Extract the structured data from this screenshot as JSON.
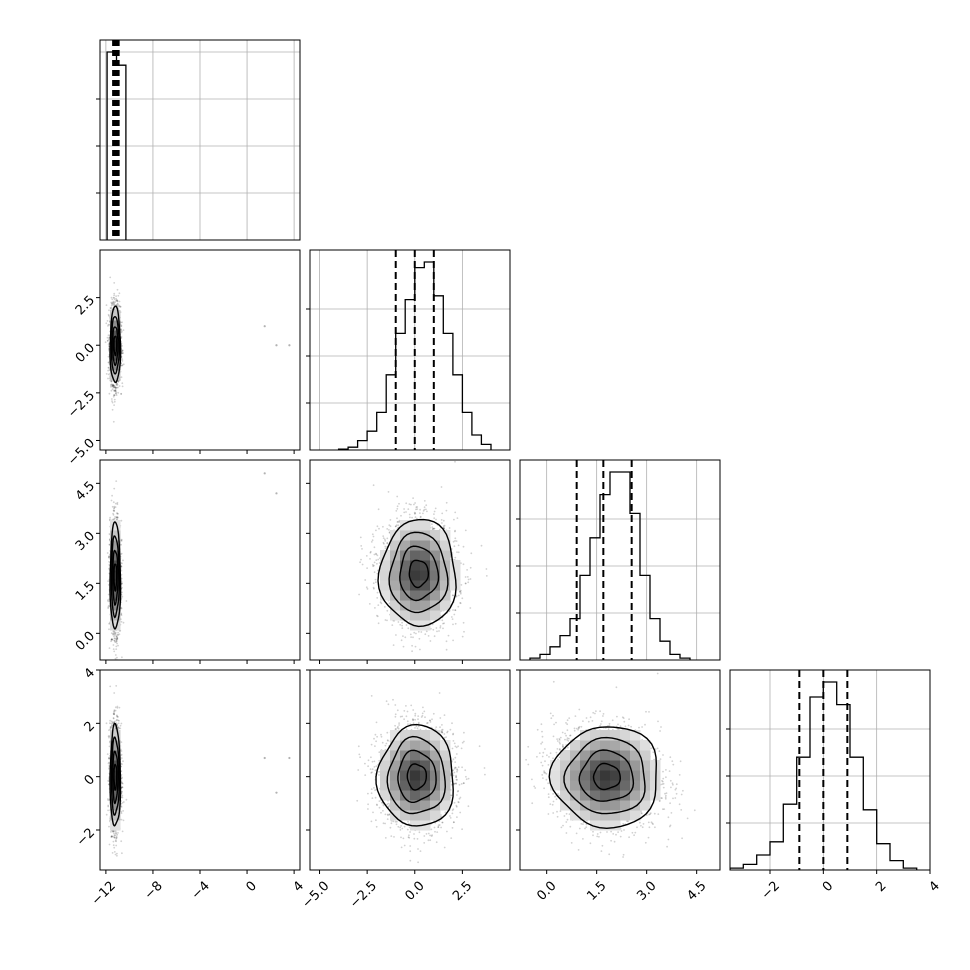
{
  "chart_data": {
    "type": "corner",
    "n_params": 4,
    "axis_ranges": [
      [
        -12.5,
        4.5
      ],
      [
        -5.5,
        5.0
      ],
      [
        -0.8,
        5.2
      ],
      [
        -3.5,
        4.0
      ]
    ],
    "bottom_tick_values": [
      [
        -12,
        -8,
        -4,
        0,
        4
      ],
      [
        -5.0,
        -2.5,
        0.0,
        2.5
      ],
      [
        0.0,
        1.5,
        3.0,
        4.5
      ],
      [
        -2,
        0,
        2,
        4
      ]
    ],
    "bottom_tick_labels": [
      [
        "−12",
        "−8",
        "−4",
        "0",
        "4"
      ],
      [
        "−5.0",
        "−2.5",
        "0.0",
        "2.5"
      ],
      [
        "0.0",
        "1.5",
        "3.0",
        "4.5"
      ],
      [
        "−2",
        "0",
        "2",
        "4"
      ]
    ],
    "left_tick_values": [
      [
        2.5,
        0.0,
        -2.5,
        -5.0
      ],
      [
        4.5,
        3.0,
        1.5,
        0.0
      ],
      [
        4,
        2,
        0,
        -2
      ]
    ],
    "left_tick_labels": [
      [
        "2.5",
        "0.0",
        "−2.5",
        "−5.0"
      ],
      [
        "4.5",
        "3.0",
        "1.5",
        "0.0"
      ],
      [
        "4",
        "2",
        "0",
        "−2"
      ]
    ],
    "grid": true,
    "quantiles": [
      0.16,
      0.5,
      0.84
    ],
    "histograms": [
      {
        "param": 0,
        "bin_edges": [
          -11.9,
          -11.1,
          -10.3
        ],
        "counts": [
          1.0,
          0.93
        ],
        "quantile_values": [
          -11.3,
          -11.15,
          -11.0
        ]
      },
      {
        "param": 1,
        "bin_edges": [
          -4.0,
          -3.5,
          -3.0,
          -2.5,
          -2.0,
          -1.5,
          -1.0,
          -0.5,
          0.0,
          0.5,
          1.0,
          1.5,
          2.0,
          2.5,
          3.0,
          3.5,
          4.0
        ],
        "counts": [
          0.005,
          0.015,
          0.05,
          0.1,
          0.2,
          0.4,
          0.62,
          0.8,
          0.97,
          1.0,
          0.82,
          0.62,
          0.4,
          0.2,
          0.08,
          0.03
        ],
        "quantile_values": [
          -1.0,
          0.0,
          1.0
        ]
      },
      {
        "param": 2,
        "bin_edges": [
          -0.5,
          -0.2,
          0.1,
          0.4,
          0.7,
          1.0,
          1.3,
          1.6,
          1.9,
          2.2,
          2.5,
          2.8,
          3.1,
          3.4,
          3.7,
          4.0,
          4.3
        ],
        "counts": [
          0.01,
          0.03,
          0.07,
          0.13,
          0.22,
          0.45,
          0.65,
          0.88,
          1.0,
          1.0,
          0.78,
          0.45,
          0.22,
          0.1,
          0.03,
          0.01
        ],
        "quantile_values": [
          0.9,
          1.7,
          2.55
        ]
      },
      {
        "param": 3,
        "bin_edges": [
          -3.5,
          -3.0,
          -2.5,
          -2.0,
          -1.5,
          -1.0,
          -0.5,
          0.0,
          0.5,
          1.0,
          1.5,
          2.0,
          2.5,
          3.0,
          3.5
        ],
        "counts": [
          0.01,
          0.03,
          0.08,
          0.15,
          0.35,
          0.6,
          0.92,
          1.0,
          0.88,
          0.6,
          0.32,
          0.14,
          0.05,
          0.01
        ],
        "quantile_values": [
          -0.9,
          0.0,
          0.9
        ]
      }
    ],
    "pairs": [
      {
        "x_param": 0,
        "y_param": 1,
        "center": [
          -11.2,
          0.0
        ],
        "sigma": [
          0.22,
          1.0
        ],
        "corr": 0.0,
        "outliers": [
          [
            1.5,
            1.0
          ],
          [
            2.5,
            0.0
          ],
          [
            3.6,
            0.0
          ]
        ]
      },
      {
        "x_param": 0,
        "y_param": 2,
        "center": [
          -11.2,
          1.7
        ],
        "sigma": [
          0.22,
          0.8
        ],
        "corr": 0.0,
        "outliers": [
          [
            1.5,
            4.8
          ],
          [
            2.5,
            4.2
          ]
        ]
      },
      {
        "x_param": 1,
        "y_param": 2,
        "center": [
          0.2,
          1.8
        ],
        "sigma": [
          1.0,
          0.8
        ],
        "corr": -0.05,
        "outliers": []
      },
      {
        "x_param": 0,
        "y_param": 3,
        "center": [
          -11.2,
          0.0
        ],
        "sigma": [
          0.22,
          0.95
        ],
        "corr": 0.0,
        "outliers": [
          [
            1.5,
            0.7
          ],
          [
            2.5,
            -0.6
          ],
          [
            3.6,
            0.7
          ]
        ]
      },
      {
        "x_param": 1,
        "y_param": 3,
        "center": [
          0.1,
          0.0
        ],
        "sigma": [
          1.0,
          0.95
        ],
        "corr": 0.0,
        "outliers": []
      },
      {
        "x_param": 2,
        "y_param": 3,
        "center": [
          1.8,
          0.0
        ],
        "sigma": [
          0.8,
          0.95
        ],
        "corr": -0.1,
        "outliers": []
      }
    ],
    "contour_levels_sigma": [
      0.5,
      1.0,
      1.5,
      2.0
    ],
    "colors": {
      "line": "#000000",
      "grid": "#b0b0b0",
      "scatter": "#000000"
    }
  }
}
